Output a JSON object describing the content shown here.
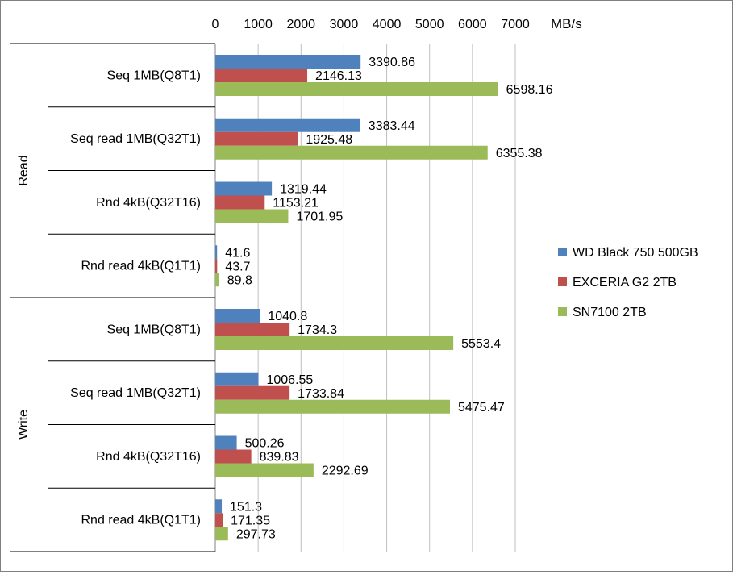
{
  "chart_data": {
    "type": "bar",
    "orientation": "horizontal",
    "unit_label": "MB/s",
    "xlim": [
      0,
      7000
    ],
    "x_ticks": [
      "0",
      "1000",
      "2000",
      "3000",
      "4000",
      "5000",
      "6000",
      "7000"
    ],
    "tick_values": [
      0,
      1000,
      2000,
      3000,
      4000,
      5000,
      6000,
      7000
    ],
    "groups": [
      "Read",
      "Write"
    ],
    "categories": [
      "Seq 1MB(Q8T1)",
      "Seq read 1MB(Q32T1)",
      "Rnd 4kB(Q32T16)",
      "Rnd read 4kB(Q1T1)",
      "Seq 1MB(Q8T1)",
      "Seq read 1MB(Q32T1)",
      "Rnd 4kB(Q32T16)",
      "Rnd read 4kB(Q1T1)"
    ],
    "series": [
      {
        "name": "WD Black 750 500GB",
        "color": "#4f81bd",
        "values": [
          3390.86,
          3383.44,
          1319.44,
          41.6,
          1040.8,
          1006.55,
          500.26,
          151.3
        ],
        "labels": [
          "3390.86",
          "3383.44",
          "1319.44",
          "41.6",
          "1040.8",
          "1006.55",
          "500.26",
          "151.3"
        ]
      },
      {
        "name": "EXCERIA G2 2TB",
        "color": "#c0504d",
        "values": [
          2146.13,
          1925.48,
          1153.21,
          43.7,
          1734.3,
          1733.84,
          839.83,
          171.35
        ],
        "labels": [
          "2146.13",
          "1925.48",
          "1153.21",
          "43.7",
          "1734.3",
          "1733.84",
          "839.83",
          "171.35"
        ]
      },
      {
        "name": "SN7100 2TB",
        "color": "#9bbb59",
        "values": [
          6598.16,
          6355.38,
          1701.95,
          89.8,
          5553.4,
          5475.47,
          2292.69,
          297.73
        ],
        "labels": [
          "6598.16",
          "6355.38",
          "1701.95",
          "89.8",
          "5553.4",
          "5475.47",
          "2292.69",
          "297.73"
        ]
      }
    ],
    "grid": true,
    "legend_position": "right"
  }
}
